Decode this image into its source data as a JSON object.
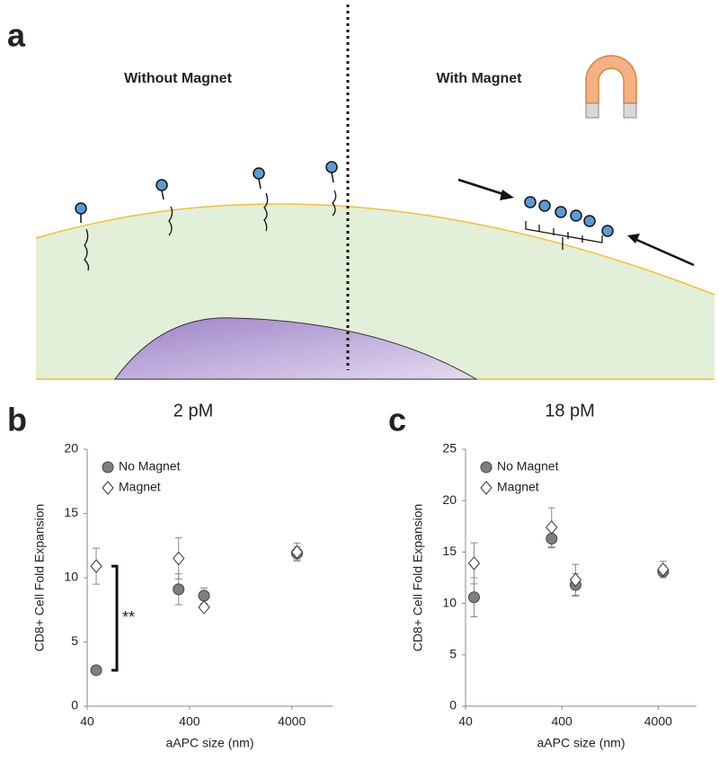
{
  "diagram": {
    "panel_label": "a",
    "left_label": "Without Magnet",
    "right_label": "With Magnet"
  },
  "chart_data": [
    {
      "type": "scatter",
      "panel_label": "b",
      "title": "2 pM",
      "x_label": "aAPC size (nm)",
      "y_label": "CD8+ Cell Fold Expansion",
      "xscale": "log",
      "xlim": [
        40,
        10000
      ],
      "xticks": [
        40,
        400,
        4000
      ],
      "ylim": [
        0,
        20
      ],
      "yticks": [
        0,
        5,
        10,
        15,
        20
      ],
      "legend": "upper left",
      "annotation": "**",
      "series": [
        {
          "name": "No Magnet",
          "color": "#7f7f7f",
          "marker": "circle",
          "x": [
            49,
            313,
            555,
            4500
          ],
          "values": [
            2.8,
            9.1,
            8.6,
            11.9
          ],
          "errors": [
            0.1,
            1.2,
            0.6,
            0.5
          ]
        },
        {
          "name": "Magnet",
          "color": "#ffffff",
          "marker": "diamond",
          "x": [
            49,
            313,
            555,
            4500
          ],
          "values": [
            10.9,
            11.5,
            7.7,
            12.0
          ],
          "errors": [
            1.4,
            1.6,
            0.2,
            0.7
          ]
        }
      ]
    },
    {
      "type": "scatter",
      "panel_label": "c",
      "title": "18 pM",
      "x_label": "aAPC size (nm)",
      "y_label": "CD8+ Cell Fold Expansion",
      "xscale": "log",
      "xlim": [
        40,
        10000
      ],
      "xticks": [
        40,
        400,
        4000
      ],
      "ylim": [
        0,
        25
      ],
      "yticks": [
        0,
        5,
        10,
        15,
        20,
        25
      ],
      "legend": "upper left",
      "series": [
        {
          "name": "No Magnet",
          "color": "#7f7f7f",
          "marker": "circle",
          "x": [
            49,
            313,
            555,
            4500
          ],
          "values": [
            10.6,
            16.3,
            11.8,
            13.1
          ],
          "errors": [
            1.9,
            0.9,
            1.1,
            0.6
          ]
        },
        {
          "name": "Magnet",
          "color": "#ffffff",
          "marker": "diamond",
          "x": [
            49,
            313,
            555,
            4500
          ],
          "values": [
            13.9,
            17.4,
            12.3,
            13.3
          ],
          "errors": [
            2.0,
            1.9,
            1.5,
            0.8
          ]
        }
      ]
    }
  ]
}
